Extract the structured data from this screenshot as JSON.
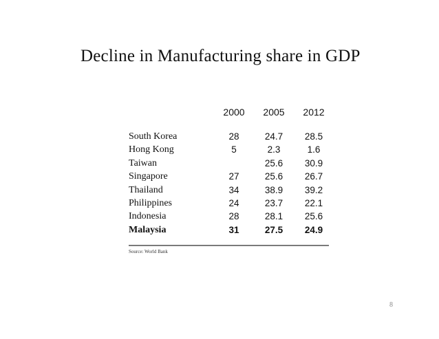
{
  "slide": {
    "title": "Decline in Manufacturing share in GDP",
    "page_number": "8"
  },
  "table": {
    "years": [
      "2000",
      "2005",
      "2012"
    ],
    "rows": [
      {
        "country": "South Korea",
        "v2000": "28",
        "v2005": "24.7",
        "v2012": "28.5",
        "bold": false
      },
      {
        "country": "Hong Kong",
        "v2000": "5",
        "v2005": "2.3",
        "v2012": "1.6",
        "bold": false
      },
      {
        "country": "Taiwan",
        "v2000": "",
        "v2005": "25.6",
        "v2012": "30.9",
        "bold": false
      },
      {
        "country": "Singapore",
        "v2000": "27",
        "v2005": "25.6",
        "v2012": "26.7",
        "bold": false
      },
      {
        "country": "Thailand",
        "v2000": "34",
        "v2005": "38.9",
        "v2012": "39.2",
        "bold": false
      },
      {
        "country": "Philippines",
        "v2000": "24",
        "v2005": "23.7",
        "v2012": "22.1",
        "bold": false
      },
      {
        "country": "Indonesia",
        "v2000": "28",
        "v2005": "28.1",
        "v2012": "25.6",
        "bold": false
      },
      {
        "country": "Malaysia",
        "v2000": "31",
        "v2005": "27.5",
        "v2012": "24.9",
        "bold": true
      }
    ],
    "source": "Source: World Bank"
  },
  "colors": {
    "text": "#111111",
    "rule": "#7a7a7a",
    "page_number": "#888888"
  }
}
